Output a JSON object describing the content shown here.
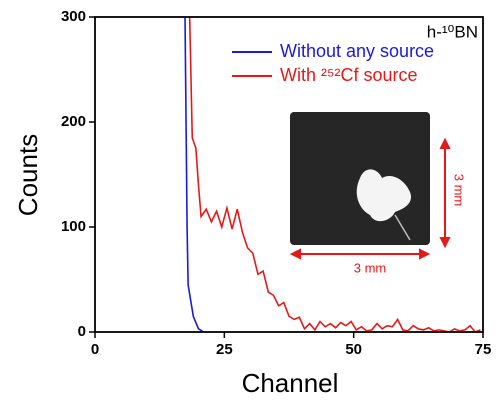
{
  "chart_data": {
    "type": "line",
    "xlabel": "Channel",
    "ylabel": "Counts",
    "annotation": "h-¹⁰BN",
    "inset_labels": [
      "3 mm",
      "3 mm"
    ],
    "xlim": [
      0,
      75
    ],
    "xticks": [
      0,
      25,
      50,
      75
    ],
    "ylim": [
      0,
      300
    ],
    "yticks": [
      0,
      100,
      200,
      300
    ],
    "legend": "upper right",
    "series": [
      {
        "name": "Without any source",
        "color": "#1a1adc",
        "x": [
          17.4,
          17.6,
          17.8,
          18,
          19,
          20,
          21
        ],
        "values": [
          300,
          200,
          100,
          45,
          15,
          3,
          0
        ]
      },
      {
        "name": "With ²⁵²Cf source",
        "color": "#e41a1a",
        "x": [
          18.3,
          18.8,
          19.5,
          20,
          20.5,
          21.5,
          22.5,
          23.5,
          24.5,
          25.5,
          26.5,
          27.5,
          28.5,
          29.5,
          30.5,
          31.5,
          32.5,
          33.5,
          34.5,
          35.5,
          36.5,
          37.5,
          38.5,
          39.5,
          40.5,
          41.5,
          42.5,
          43.5,
          44.5,
          45.5,
          46.5,
          47.5,
          48.5,
          49.5,
          50.5,
          51.5,
          52.5,
          53.5,
          54.5,
          55.5,
          56.5,
          57.5,
          58.5,
          59.5,
          60.5,
          61.5,
          62.5,
          63.5,
          64.5,
          65.5,
          66.5,
          67.5,
          68.5,
          69.5,
          70.5,
          71.5,
          72.5,
          73.5,
          74.5
        ],
        "values": [
          300,
          185,
          175,
          140,
          110,
          117,
          105,
          115,
          100,
          118,
          98,
          117,
          95,
          80,
          75,
          55,
          58,
          38,
          35,
          25,
          28,
          15,
          12,
          14,
          3,
          8,
          2,
          10,
          5,
          8,
          4,
          9,
          6,
          10,
          2,
          5,
          1,
          2,
          8,
          3,
          6,
          5,
          12,
          2,
          1,
          6,
          3,
          2,
          4,
          1,
          2,
          1,
          0,
          3,
          1,
          2,
          6,
          0,
          2
        ]
      }
    ]
  }
}
